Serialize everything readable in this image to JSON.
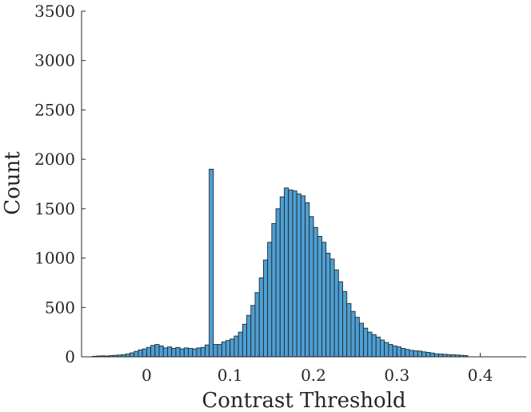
{
  "chart_data": {
    "type": "bar",
    "xlabel": "Contrast Threshold",
    "ylabel": "Count",
    "xlim": [
      -0.078,
      0.455
    ],
    "ylim": [
      0,
      3500
    ],
    "xticks": [
      "0",
      "0.1",
      "0.2",
      "0.3",
      "0.4"
    ],
    "yticks": [
      "0",
      "500",
      "1000",
      "1500",
      "2000",
      "2500",
      "3000",
      "3500"
    ],
    "grid": false,
    "bar_color": "#4E9FD2",
    "bar_edge_color": "#1f2a33",
    "bin_width": 0.005,
    "bin_start": -0.065,
    "values": [
      5,
      8,
      10,
      8,
      12,
      15,
      18,
      22,
      28,
      40,
      55,
      70,
      80,
      95,
      115,
      125,
      110,
      90,
      100,
      85,
      95,
      80,
      90,
      85,
      80,
      90,
      95,
      120,
      1900,
      125,
      125,
      150,
      165,
      180,
      210,
      250,
      330,
      420,
      520,
      650,
      800,
      980,
      1160,
      1350,
      1500,
      1620,
      1710,
      1690,
      1680,
      1650,
      1630,
      1560,
      1420,
      1310,
      1220,
      1160,
      1050,
      990,
      880,
      760,
      660,
      540,
      460,
      400,
      340,
      290,
      250,
      225,
      200,
      170,
      145,
      125,
      110,
      100,
      85,
      75,
      65,
      60,
      58,
      50,
      45,
      38,
      30,
      28,
      25,
      22,
      20,
      18,
      15,
      12
    ]
  }
}
